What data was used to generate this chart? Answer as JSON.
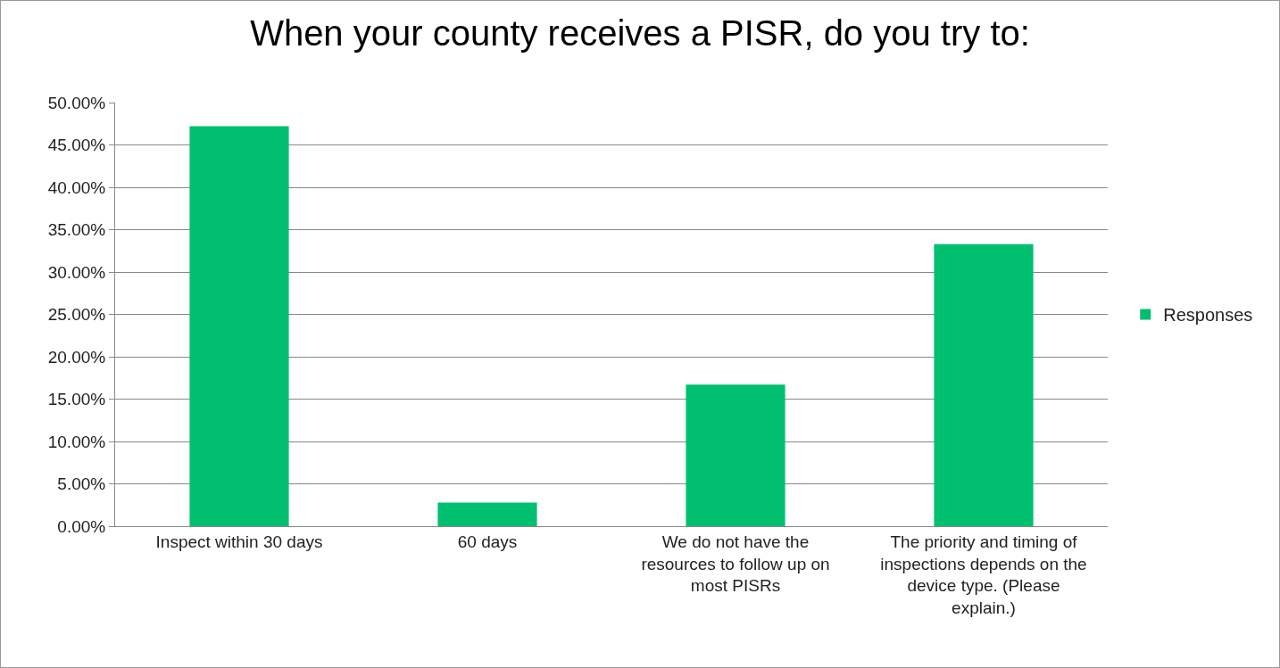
{
  "chart_data": {
    "type": "bar",
    "title": "When your county receives a PISR, do you try to:",
    "categories": [
      "Inspect within 30 days",
      "60 days",
      "We do not have the resources to follow up on most PISRs",
      "The priority and timing of inspections depends on the device type. (Please explain.)"
    ],
    "series": [
      {
        "name": "Responses",
        "color": "#00c070",
        "values": [
          47.2,
          2.8,
          16.7,
          33.3
        ]
      }
    ],
    "ylim": [
      0,
      50
    ],
    "yticks": [
      {
        "value": 0,
        "label": "0.00%"
      },
      {
        "value": 5,
        "label": "5.00%"
      },
      {
        "value": 10,
        "label": "10.00%"
      },
      {
        "value": 15,
        "label": "15.00%"
      },
      {
        "value": 20,
        "label": "20.00%"
      },
      {
        "value": 25,
        "label": "25.00%"
      },
      {
        "value": 30,
        "label": "30.00%"
      },
      {
        "value": 35,
        "label": "35.00%"
      },
      {
        "value": 40,
        "label": "40.00%"
      },
      {
        "value": 45,
        "label": "45.00%"
      },
      {
        "value": 50,
        "label": "50.00%"
      }
    ],
    "grid": "y",
    "legend": "right"
  }
}
